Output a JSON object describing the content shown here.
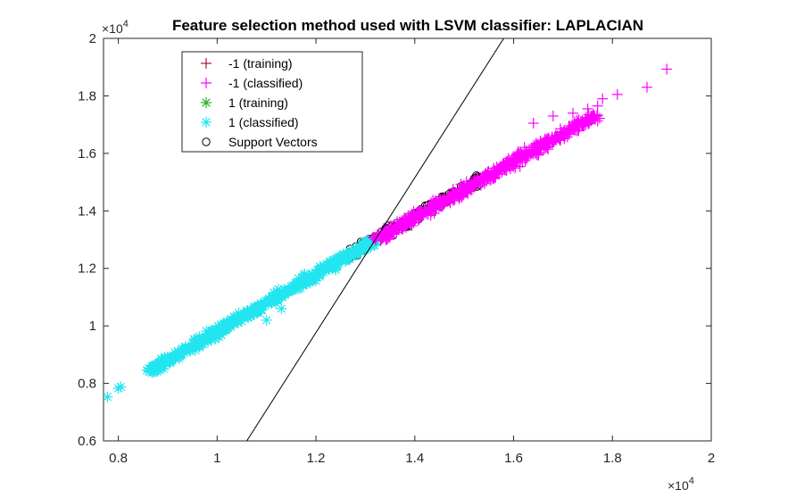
{
  "chart_data": {
    "type": "scatter",
    "title": "Feature selection method used with LSVM classifier: LAPLACIAN",
    "xlabel": "",
    "ylabel": "",
    "xlim": [
      7700,
      20000
    ],
    "ylim": [
      6000,
      20000
    ],
    "x_ticks": [
      8000,
      10000,
      12000,
      14000,
      16000,
      18000,
      20000
    ],
    "x_tick_labels": [
      "0.8",
      "1",
      "1.2",
      "1.4",
      "1.6",
      "1.8",
      "2"
    ],
    "y_ticks": [
      6000,
      8000,
      10000,
      12000,
      14000,
      16000,
      18000,
      20000
    ],
    "y_tick_labels": [
      "0.6",
      "0.8",
      "1",
      "1.2",
      "1.4",
      "1.6",
      "1.8",
      "2"
    ],
    "x_exponent_label": "×10",
    "x_exponent_power": "4",
    "y_exponent_label": "×10",
    "y_exponent_power": "4",
    "grid": false,
    "legend_position": "top-left",
    "series": [
      {
        "name": "-1 (training)",
        "marker": "plus",
        "color": "#b0104a",
        "points": []
      },
      {
        "name": "-1 (classified)",
        "marker": "plus",
        "color": "#ff00ff",
        "outliers": [
          [
            16400,
            17050
          ],
          [
            16800,
            17300
          ],
          [
            17200,
            17400
          ],
          [
            17500,
            17550
          ],
          [
            17700,
            17650
          ],
          [
            17800,
            17900
          ],
          [
            18100,
            18050
          ],
          [
            18700,
            18300
          ],
          [
            19100,
            18930
          ]
        ],
        "band": {
          "x_start": 13200,
          "x_end": 17700,
          "y_start": 13000,
          "y_end": 17350,
          "count": 650,
          "spread": 280
        }
      },
      {
        "name": "1 (training)",
        "marker": "asterisk",
        "color": "#22b822",
        "points": []
      },
      {
        "name": "1 (classified)",
        "marker": "asterisk",
        "color": "#22e5f0",
        "outliers": [
          [
            7780,
            7530
          ],
          [
            8050,
            7880
          ],
          [
            8000,
            7830
          ],
          [
            11000,
            10200
          ],
          [
            11300,
            10600
          ]
        ],
        "band": {
          "x_start": 8600,
          "x_end": 13200,
          "y_start": 8400,
          "y_end": 13000,
          "count": 560,
          "spread": 260
        }
      },
      {
        "name": "Support Vectors",
        "marker": "circle",
        "color": "#000000",
        "band": {
          "x_start": 12600,
          "x_end": 15400,
          "y_start": 12400,
          "y_end": 15200,
          "count": 140,
          "spread": 300
        }
      }
    ],
    "decision_boundary": {
      "color": "#000000",
      "points": [
        [
          10600,
          6000
        ],
        [
          15800,
          20000
        ]
      ]
    }
  }
}
